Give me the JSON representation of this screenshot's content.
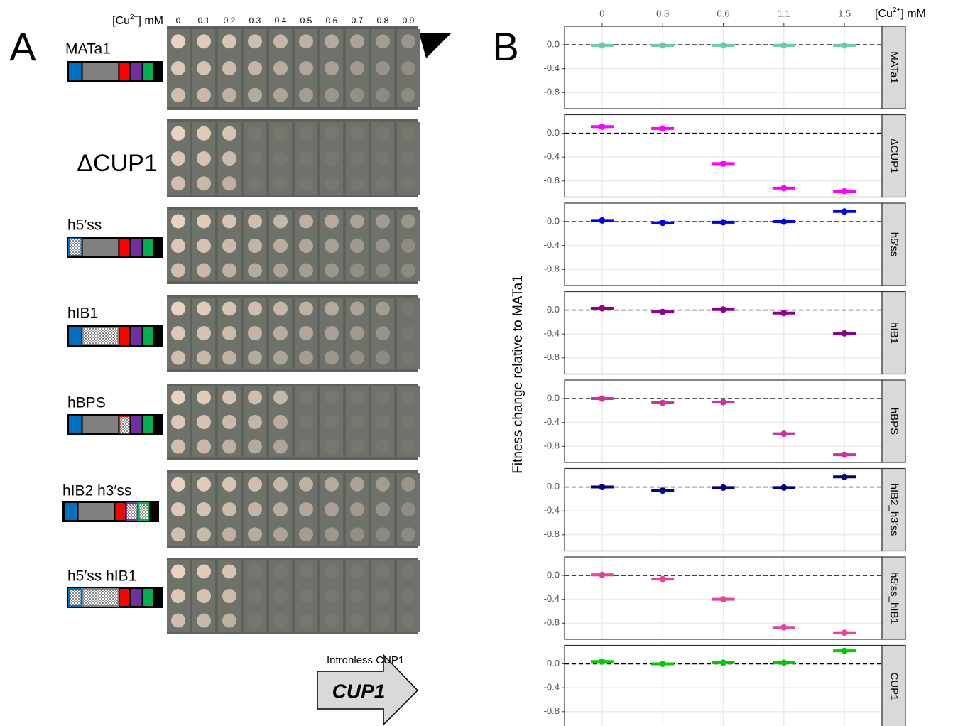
{
  "panel_a": {
    "label": "A",
    "conc_header": {
      "prefix": "[Cu",
      "sup": "2+",
      "suffix": "] mM"
    },
    "concentrations": [
      "0",
      "0.1",
      "0.2",
      "0.3",
      "0.4",
      "0.5",
      "0.6",
      "0.7",
      "0.8",
      "0.9"
    ],
    "strains": [
      "MATa1",
      "ΔCUP1",
      "h5′ss",
      "hIB1",
      "hBPS",
      "hIB2  h3′ss",
      "h5′ss  hIB1"
    ],
    "arrow_caption": "Intronless CUP1",
    "arrow_label": "CUP1"
  },
  "chart_data": {
    "type": "dot",
    "panel_label": "B",
    "x_label": {
      "prefix": "[Cu",
      "sup": "2+",
      "suffix": "] mM"
    },
    "y_label": "Fitness change relative to MATa1",
    "categories": [
      "0",
      "0.3",
      "0.6",
      "1.1",
      "1.5"
    ],
    "ylim": [
      -1.07,
      0.31
    ],
    "yticks": [
      {
        "value": 0,
        "label": "0.0"
      },
      {
        "value": -0.4,
        "label": "-0.4"
      },
      {
        "value": -0.8,
        "label": "-0.8"
      }
    ],
    "grid": true,
    "series": [
      {
        "name": "MATa1",
        "color": "#66cdaa",
        "values": [
          -0.01,
          -0.01,
          -0.01,
          -0.01,
          -0.01
        ]
      },
      {
        "name": "ΔCUP1",
        "color": "#ff00ff",
        "values": [
          0.11,
          0.08,
          -0.51,
          -0.92,
          -0.97
        ]
      },
      {
        "name": "h5′ss",
        "color": "#0000ee",
        "values": [
          0.02,
          -0.02,
          -0.01,
          0.0,
          0.17
        ]
      },
      {
        "name": "hIB1",
        "color": "#8b008b",
        "values": [
          0.03,
          -0.03,
          0.01,
          -0.05,
          -0.39
        ]
      },
      {
        "name": "hBPS",
        "color": "#cd3399",
        "values": [
          0.0,
          -0.07,
          -0.06,
          -0.59,
          -0.94
        ]
      },
      {
        "name": "hIB2_h3′ss",
        "color": "#000080",
        "values": [
          0.0,
          -0.06,
          -0.01,
          -0.01,
          0.17
        ]
      },
      {
        "name": "h5′ss_hIB1",
        "color": "#e8439a",
        "values": [
          0.01,
          -0.06,
          -0.4,
          -0.87,
          -0.96
        ]
      },
      {
        "name": "CUP1",
        "color": "#00cd00",
        "values": [
          0.04,
          0.0,
          0.02,
          0.02,
          0.22
        ]
      }
    ]
  }
}
